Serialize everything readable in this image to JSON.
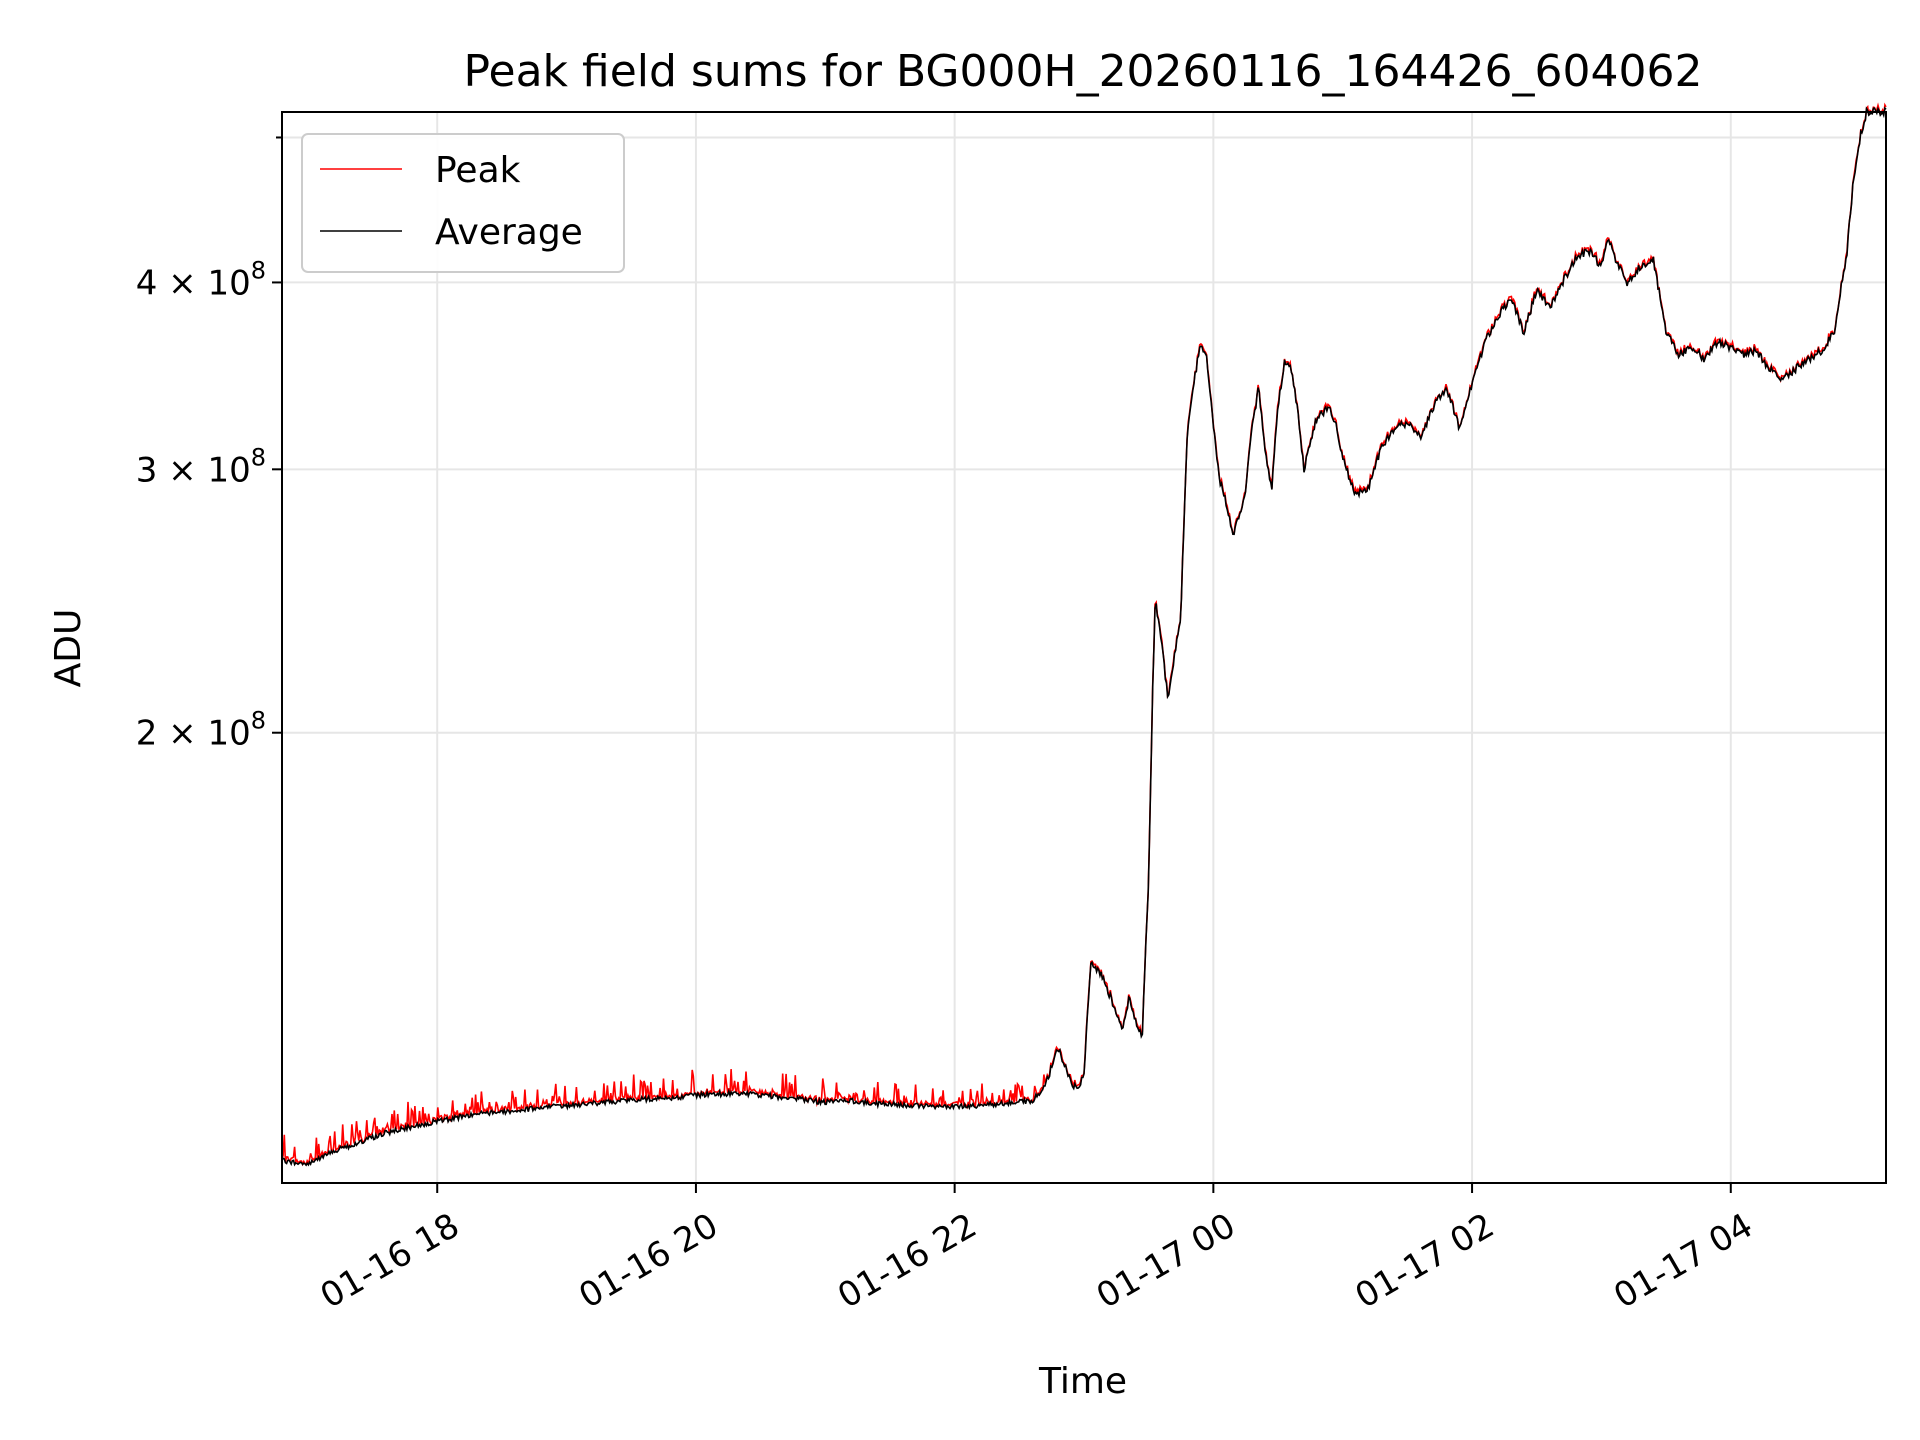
{
  "chart_data": {
    "type": "line",
    "title": "Peak field sums for BG000H_20260116_164426_604062",
    "xlabel": "Time",
    "ylabel": "ADU",
    "yscale": "log",
    "xlim": [
      -1.2,
      11.2
    ],
    "ylim": [
      100000000.0,
      520000000.0
    ],
    "grid": true,
    "legend_position": "top-left",
    "x_ticks": [
      {
        "value": 0,
        "label": "01-16 18"
      },
      {
        "value": 2,
        "label": "01-16 20"
      },
      {
        "value": 4,
        "label": "01-16 22"
      },
      {
        "value": 6,
        "label": "01-17 00"
      },
      {
        "value": 8,
        "label": "01-17 02"
      },
      {
        "value": 10,
        "label": "01-17 04"
      }
    ],
    "y_ticks": [
      {
        "value": 200000000,
        "mantissa": "2",
        "base": "10",
        "exp": "8"
      },
      {
        "value": 300000000,
        "mantissa": "3",
        "base": "10",
        "exp": "8"
      },
      {
        "value": 400000000,
        "mantissa": "4",
        "base": "10",
        "exp": "8"
      }
    ],
    "y_minor_ticks": [
      500000000
    ],
    "series": [
      {
        "name": "Peak",
        "color": "#ff0000"
      },
      {
        "name": "Average",
        "color": "#000000"
      }
    ],
    "average_points": [
      [
        -1.2,
        1.035
      ],
      [
        -1.0,
        1.03
      ],
      [
        -0.8,
        1.05
      ],
      [
        -0.6,
        1.065
      ],
      [
        -0.4,
        1.08
      ],
      [
        -0.2,
        1.09
      ],
      [
        0.0,
        1.1
      ],
      [
        0.3,
        1.112
      ],
      [
        0.6,
        1.118
      ],
      [
        0.9,
        1.125
      ],
      [
        1.2,
        1.13
      ],
      [
        1.5,
        1.137
      ],
      [
        1.8,
        1.14
      ],
      [
        2.0,
        1.145
      ],
      [
        2.3,
        1.148
      ],
      [
        2.5,
        1.145
      ],
      [
        2.8,
        1.138
      ],
      [
        3.0,
        1.132
      ],
      [
        3.2,
        1.135
      ],
      [
        3.4,
        1.13
      ],
      [
        3.6,
        1.128
      ],
      [
        3.8,
        1.125
      ],
      [
        4.0,
        1.125
      ],
      [
        4.2,
        1.127
      ],
      [
        4.4,
        1.13
      ],
      [
        4.6,
        1.135
      ],
      [
        4.7,
        1.16
      ],
      [
        4.8,
        1.23
      ],
      [
        4.9,
        1.17
      ],
      [
        4.95,
        1.15
      ],
      [
        5.0,
        1.18
      ],
      [
        5.05,
        1.4
      ],
      [
        5.1,
        1.39
      ],
      [
        5.15,
        1.37
      ],
      [
        5.25,
        1.3
      ],
      [
        5.3,
        1.27
      ],
      [
        5.35,
        1.33
      ],
      [
        5.4,
        1.28
      ],
      [
        5.45,
        1.25
      ],
      [
        5.5,
        1.6
      ],
      [
        5.55,
        2.45
      ],
      [
        5.6,
        2.3
      ],
      [
        5.65,
        2.1
      ],
      [
        5.7,
        2.25
      ],
      [
        5.75,
        2.4
      ],
      [
        5.8,
        3.2
      ],
      [
        5.9,
        3.65
      ],
      [
        5.95,
        3.55
      ],
      [
        6.0,
        3.2
      ],
      [
        6.05,
        2.95
      ],
      [
        6.1,
        2.85
      ],
      [
        6.15,
        2.7
      ],
      [
        6.2,
        2.8
      ],
      [
        6.25,
        2.9
      ],
      [
        6.3,
        3.2
      ],
      [
        6.35,
        3.4
      ],
      [
        6.4,
        3.1
      ],
      [
        6.45,
        2.9
      ],
      [
        6.5,
        3.3
      ],
      [
        6.55,
        3.55
      ],
      [
        6.6,
        3.5
      ],
      [
        6.65,
        3.3
      ],
      [
        6.7,
        3.0
      ],
      [
        6.8,
        3.25
      ],
      [
        6.9,
        3.3
      ],
      [
        6.95,
        3.2
      ],
      [
        7.0,
        3.05
      ],
      [
        7.1,
        2.88
      ],
      [
        7.2,
        2.92
      ],
      [
        7.3,
        3.1
      ],
      [
        7.4,
        3.2
      ],
      [
        7.5,
        3.22
      ],
      [
        7.6,
        3.15
      ],
      [
        7.7,
        3.3
      ],
      [
        7.8,
        3.4
      ],
      [
        7.9,
        3.2
      ],
      [
        8.0,
        3.42
      ],
      [
        8.1,
        3.65
      ],
      [
        8.2,
        3.8
      ],
      [
        8.3,
        3.9
      ],
      [
        8.4,
        3.7
      ],
      [
        8.5,
        3.95
      ],
      [
        8.6,
        3.85
      ],
      [
        8.7,
        4.0
      ],
      [
        8.8,
        4.15
      ],
      [
        8.9,
        4.2
      ],
      [
        9.0,
        4.1
      ],
      [
        9.05,
        4.3
      ],
      [
        9.1,
        4.15
      ],
      [
        9.2,
        4.0
      ],
      [
        9.3,
        4.1
      ],
      [
        9.4,
        4.15
      ],
      [
        9.5,
        3.7
      ],
      [
        9.6,
        3.58
      ],
      [
        9.7,
        3.62
      ],
      [
        9.8,
        3.55
      ],
      [
        9.9,
        3.65
      ],
      [
        10.0,
        3.62
      ],
      [
        10.1,
        3.58
      ],
      [
        10.2,
        3.6
      ],
      [
        10.3,
        3.5
      ],
      [
        10.4,
        3.45
      ],
      [
        10.5,
        3.5
      ],
      [
        10.6,
        3.55
      ],
      [
        10.7,
        3.6
      ],
      [
        10.8,
        3.7
      ],
      [
        10.9,
        4.2
      ],
      [
        10.95,
        4.7
      ],
      [
        11.0,
        5.0
      ],
      [
        11.05,
        5.2
      ],
      [
        11.2,
        5.2
      ]
    ]
  }
}
